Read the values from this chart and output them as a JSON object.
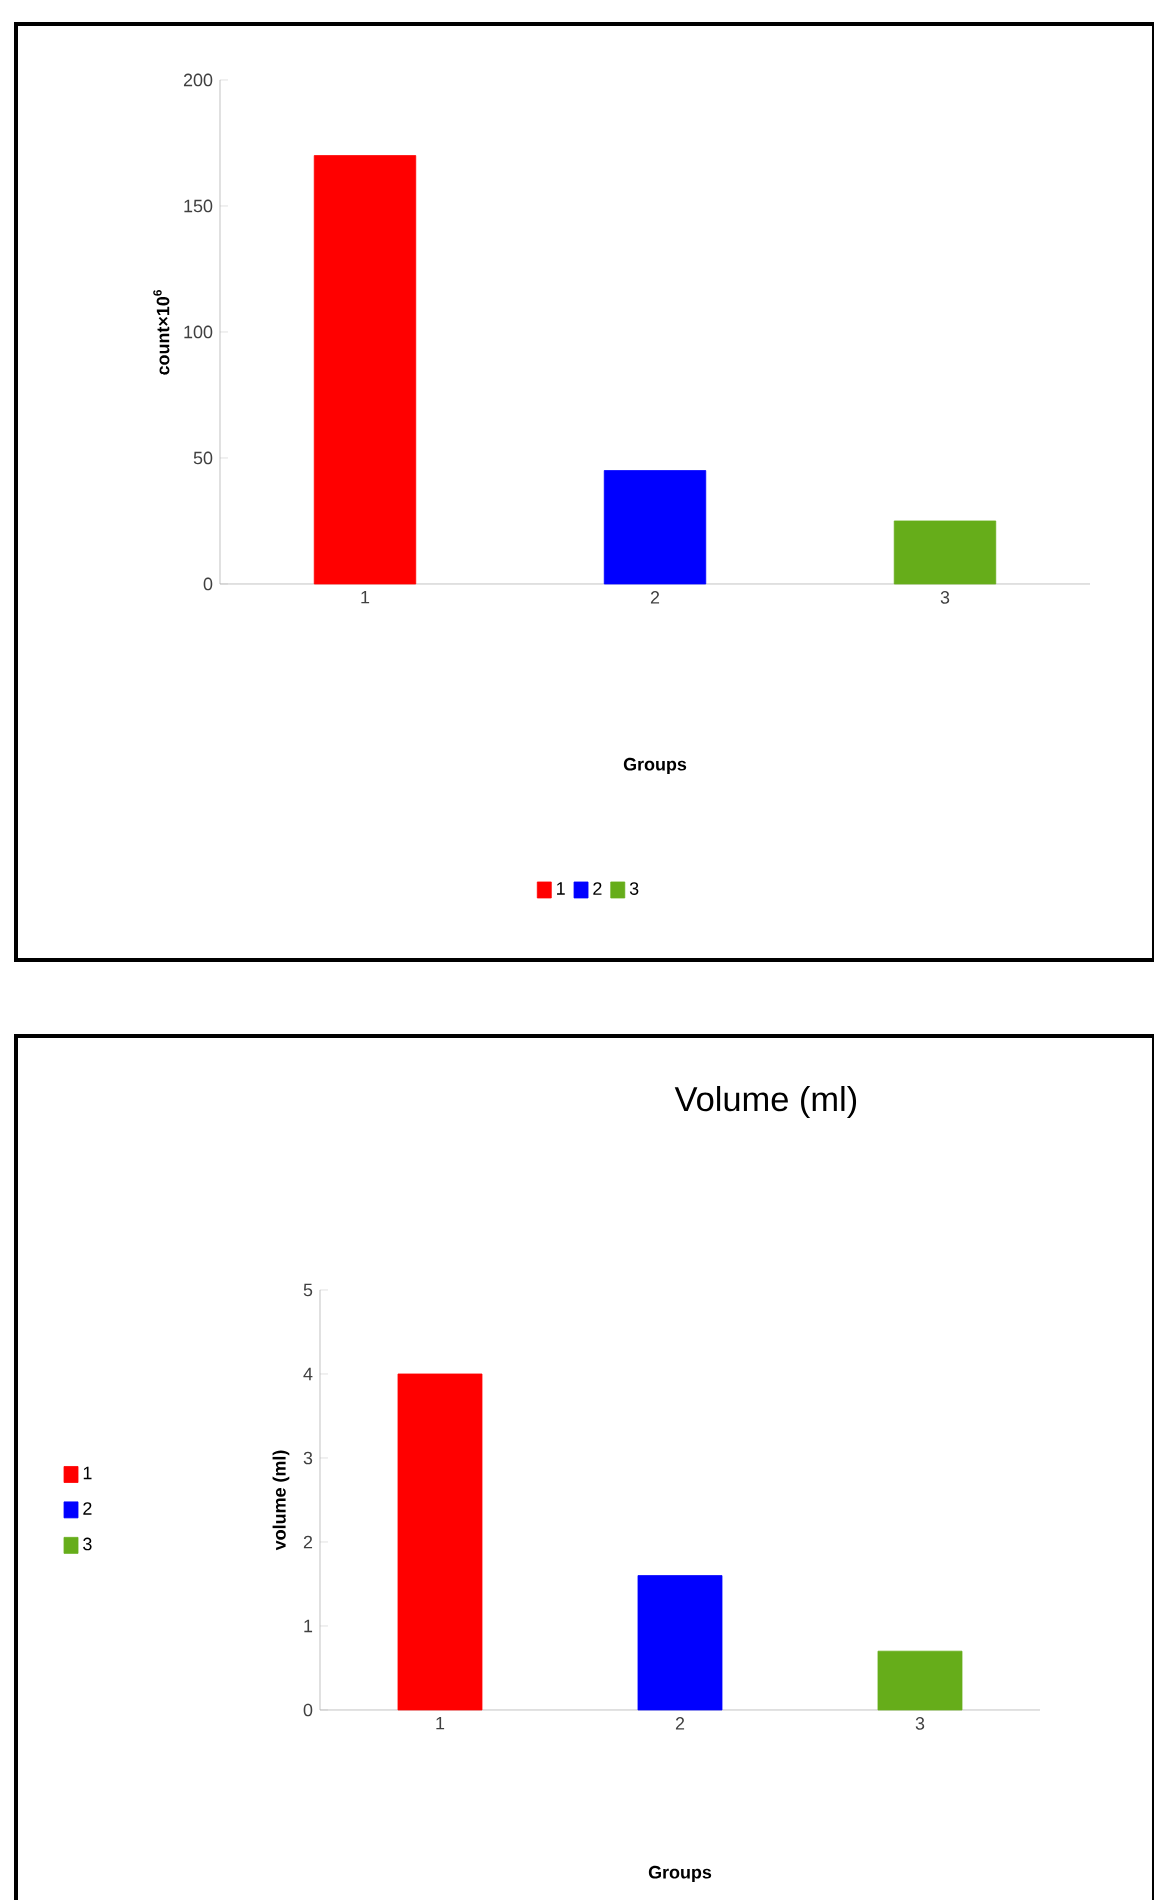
{
  "chart_data": [
    {
      "type": "bar",
      "xlabel": "Groups",
      "ylabel": "count×10$^{6}$",
      "categories": [
        "1",
        "2",
        "3"
      ],
      "series": [
        {
          "name": "1",
          "color": "#ff0000",
          "values": [
            170,
            null,
            null
          ]
        },
        {
          "name": "2",
          "color": "#0000ff",
          "values": [
            null,
            45,
            null
          ]
        },
        {
          "name": "3",
          "color": "#66ad1a",
          "values": [
            null,
            null,
            25
          ]
        }
      ],
      "ylim": [
        0,
        200
      ],
      "yticks": [
        0,
        50,
        100,
        150,
        200
      ],
      "legend": "bottom"
    },
    {
      "type": "bar",
      "title": "Volume (ml)",
      "xlabel": "Groups",
      "ylabel": "volume (ml)",
      "categories": [
        "1",
        "2",
        "3"
      ],
      "series": [
        {
          "name": "1",
          "color": "#ff0000",
          "values": [
            4.0,
            null,
            null
          ]
        },
        {
          "name": "2",
          "color": "#0000ff",
          "values": [
            null,
            1.6,
            null
          ]
        },
        {
          "name": "3",
          "color": "#66ad1a",
          "values": [
            null,
            null,
            0.7
          ]
        }
      ],
      "ylim": [
        0,
        5
      ],
      "yticks": [
        0,
        1,
        2,
        3,
        4,
        5
      ],
      "legend": "left"
    }
  ]
}
